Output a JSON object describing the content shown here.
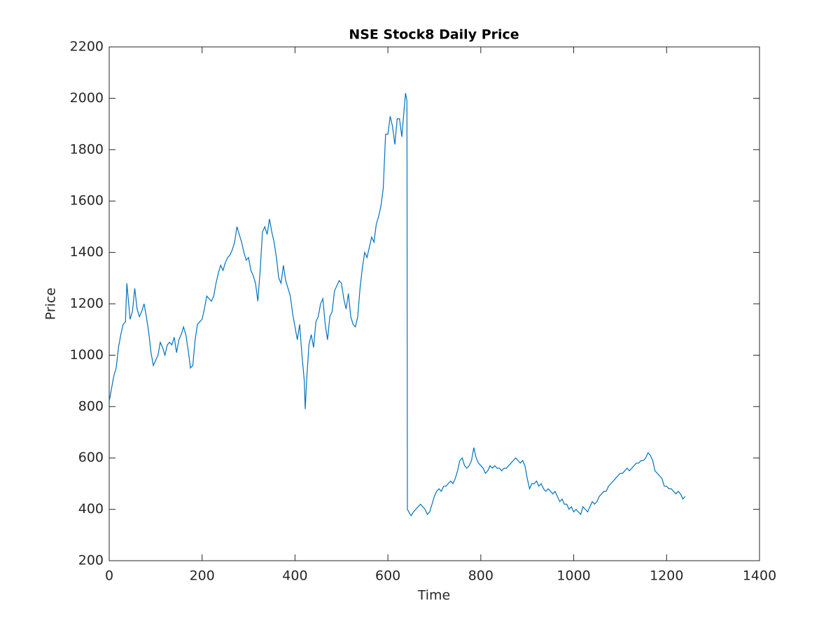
{
  "chart_data": {
    "type": "line",
    "title": "NSE Stock8 Daily Price",
    "xlabel": "Time",
    "ylabel": "Price",
    "color": "#0072bd",
    "xlim": [
      0,
      1400
    ],
    "xticks": [
      0,
      200,
      400,
      600,
      800,
      1000,
      1200,
      1400
    ],
    "ylim": [
      200,
      2200
    ],
    "yticks": [
      200,
      400,
      600,
      800,
      1000,
      1200,
      1400,
      1600,
      1800,
      2000,
      2200
    ],
    "x": [
      0,
      5,
      10,
      15,
      20,
      25,
      30,
      35,
      38,
      42,
      45,
      50,
      55,
      60,
      65,
      70,
      75,
      80,
      85,
      90,
      95,
      100,
      105,
      110,
      115,
      120,
      125,
      130,
      135,
      140,
      145,
      150,
      155,
      160,
      165,
      170,
      175,
      180,
      185,
      190,
      195,
      200,
      205,
      210,
      215,
      220,
      225,
      230,
      235,
      240,
      245,
      250,
      255,
      260,
      265,
      270,
      275,
      280,
      285,
      290,
      295,
      300,
      305,
      310,
      315,
      320,
      325,
      330,
      335,
      340,
      345,
      350,
      355,
      360,
      365,
      370,
      375,
      380,
      385,
      390,
      395,
      400,
      405,
      410,
      415,
      420,
      422,
      425,
      430,
      435,
      440,
      445,
      450,
      455,
      460,
      465,
      470,
      475,
      480,
      485,
      490,
      495,
      500,
      505,
      510,
      515,
      520,
      525,
      530,
      535,
      540,
      545,
      550,
      555,
      560,
      565,
      570,
      575,
      580,
      585,
      590,
      595,
      600,
      605,
      610,
      615,
      620,
      625,
      630,
      635,
      638,
      641,
      642,
      645,
      650,
      655,
      660,
      665,
      670,
      675,
      680,
      685,
      690,
      695,
      700,
      705,
      710,
      715,
      720,
      725,
      730,
      735,
      740,
      745,
      750,
      755,
      760,
      765,
      770,
      775,
      780,
      785,
      790,
      795,
      800,
      805,
      810,
      815,
      820,
      825,
      830,
      835,
      840,
      845,
      850,
      855,
      860,
      865,
      870,
      875,
      880,
      885,
      890,
      895,
      900,
      905,
      910,
      915,
      920,
      925,
      930,
      935,
      940,
      945,
      950,
      955,
      960,
      965,
      970,
      975,
      980,
      985,
      990,
      995,
      1000,
      1005,
      1010,
      1015,
      1020,
      1025,
      1030,
      1035,
      1040,
      1045,
      1050,
      1055,
      1060,
      1065,
      1070,
      1075,
      1080,
      1085,
      1090,
      1095,
      1100,
      1105,
      1110,
      1115,
      1120,
      1125,
      1130,
      1135,
      1140,
      1145,
      1150,
      1155,
      1160,
      1165,
      1170,
      1175,
      1180,
      1185,
      1190,
      1195,
      1200,
      1205,
      1210,
      1215,
      1220,
      1225,
      1230,
      1235,
      1240
    ],
    "values": [
      820,
      870,
      920,
      950,
      1030,
      1080,
      1120,
      1130,
      1280,
      1200,
      1140,
      1170,
      1260,
      1180,
      1150,
      1170,
      1200,
      1150,
      1090,
      1010,
      960,
      980,
      1000,
      1050,
      1030,
      1000,
      1040,
      1050,
      1040,
      1070,
      1010,
      1060,
      1080,
      1110,
      1080,
      1020,
      950,
      960,
      1060,
      1120,
      1130,
      1140,
      1180,
      1230,
      1220,
      1210,
      1230,
      1280,
      1320,
      1350,
      1330,
      1360,
      1380,
      1390,
      1410,
      1440,
      1500,
      1470,
      1440,
      1400,
      1370,
      1380,
      1330,
      1310,
      1280,
      1210,
      1330,
      1480,
      1500,
      1470,
      1530,
      1480,
      1440,
      1380,
      1300,
      1280,
      1350,
      1290,
      1260,
      1230,
      1160,
      1110,
      1060,
      1120,
      1000,
      900,
      790,
      900,
      1040,
      1080,
      1030,
      1130,
      1150,
      1200,
      1220,
      1120,
      1060,
      1150,
      1170,
      1250,
      1270,
      1290,
      1280,
      1220,
      1180,
      1240,
      1150,
      1120,
      1110,
      1150,
      1260,
      1340,
      1400,
      1380,
      1420,
      1460,
      1440,
      1510,
      1540,
      1580,
      1650,
      1860,
      1860,
      1930,
      1890,
      1820,
      1920,
      1920,
      1850,
      1960,
      2020,
      1990,
      400,
      390,
      375,
      390,
      400,
      410,
      420,
      410,
      400,
      380,
      390,
      420,
      450,
      470,
      480,
      470,
      490,
      490,
      500,
      510,
      500,
      520,
      550,
      590,
      600,
      570,
      560,
      570,
      590,
      640,
      600,
      580,
      570,
      560,
      540,
      550,
      570,
      560,
      570,
      560,
      560,
      550,
      560,
      560,
      570,
      580,
      590,
      600,
      590,
      580,
      590,
      570,
      520,
      480,
      500,
      500,
      510,
      490,
      500,
      480,
      470,
      480,
      470,
      460,
      470,
      450,
      430,
      440,
      420,
      420,
      400,
      410,
      390,
      400,
      390,
      380,
      410,
      400,
      390,
      410,
      430,
      420,
      430,
      450,
      460,
      470,
      470,
      490,
      500,
      510,
      520,
      530,
      540,
      540,
      550,
      560,
      550,
      560,
      570,
      580,
      580,
      590,
      590,
      600,
      620,
      610,
      590,
      550,
      540,
      530,
      520,
      490,
      490,
      480,
      480,
      470,
      460,
      470,
      460,
      440,
      450
    ]
  }
}
